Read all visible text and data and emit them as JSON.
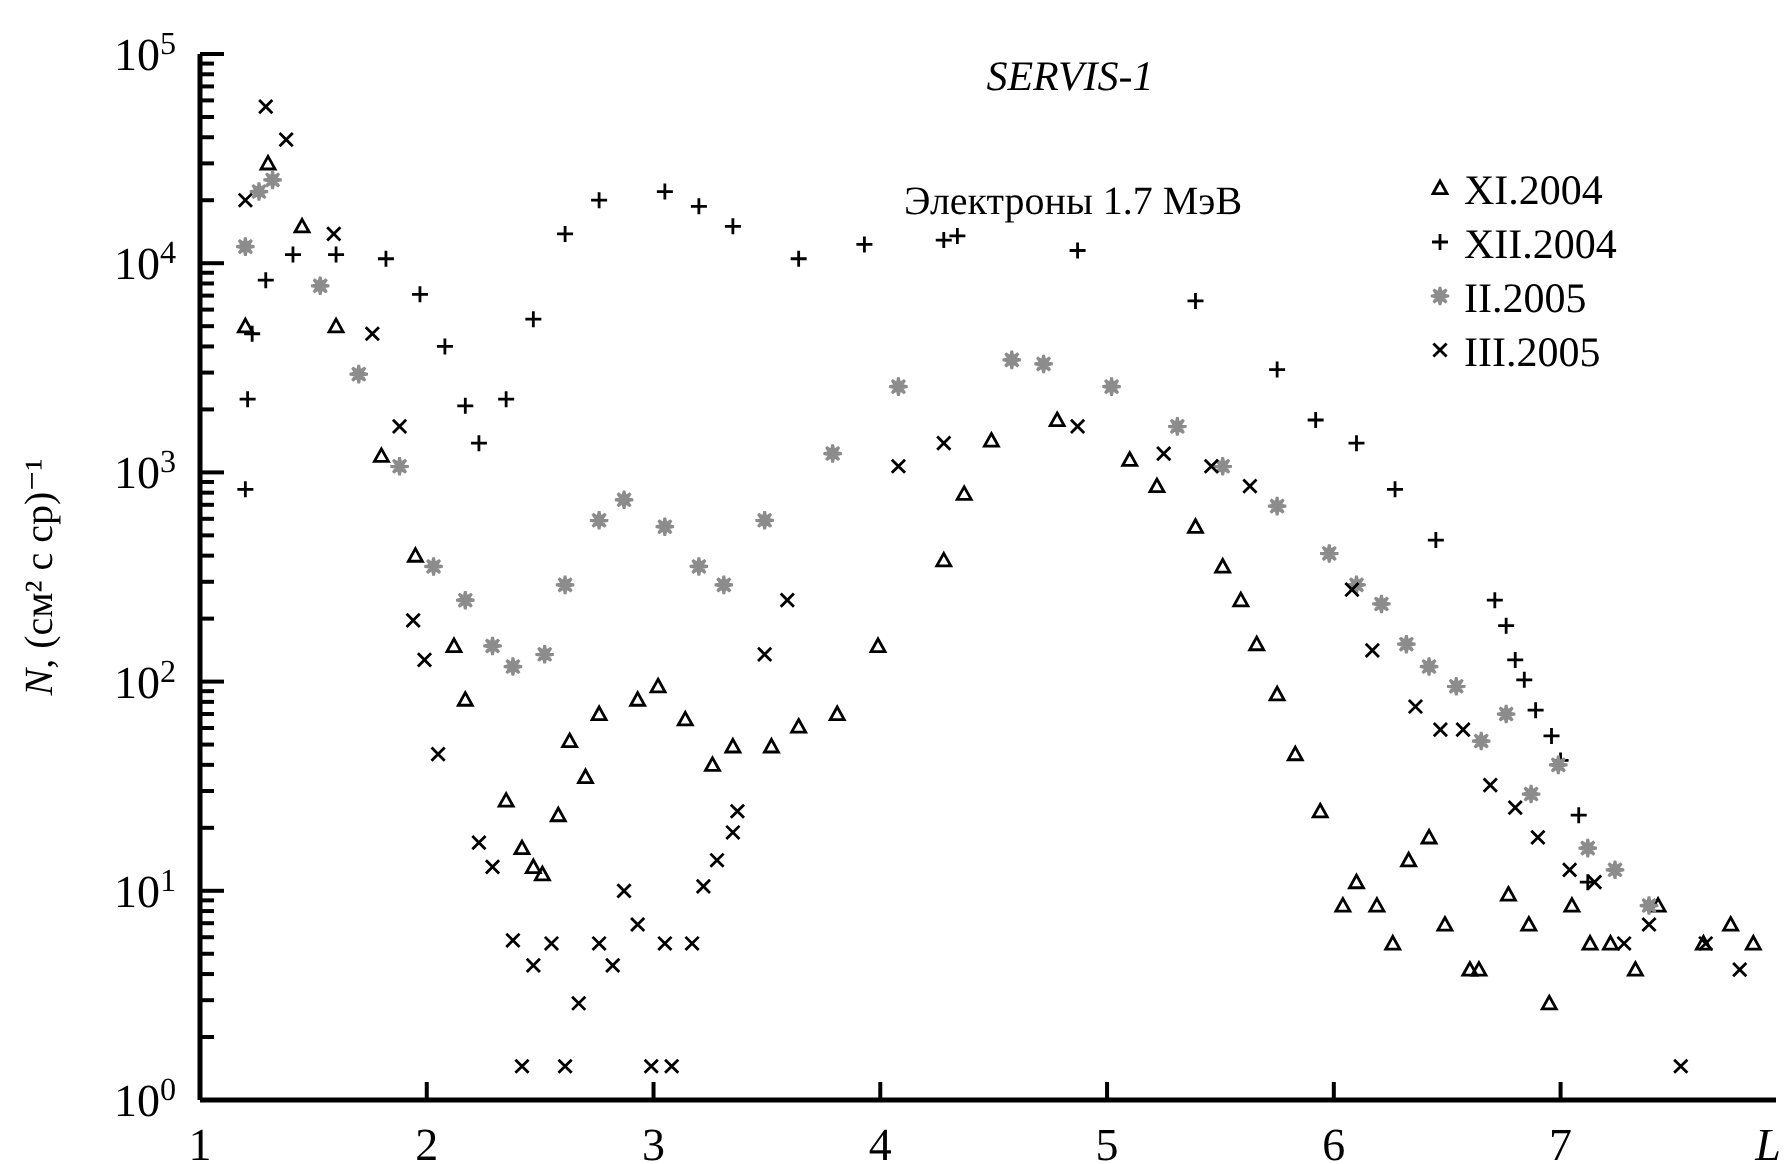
{
  "chart_data": {
    "type": "scatter",
    "title": "SERVIS-1",
    "xlabel": "L",
    "ylabel": "N, (см² с ср)⁻¹",
    "annotations": [
      "Электроны 1.7 МэВ"
    ],
    "log": "y",
    "legend": "top right",
    "xlim": [
      1,
      7.95
    ],
    "xticks": [
      1,
      2,
      3,
      4,
      5,
      6,
      7
    ],
    "ylim": [
      1,
      100000
    ],
    "yticks": [
      {
        "value": 1,
        "label": "10$^{0}$"
      },
      {
        "value": 2,
        "label": null
      },
      {
        "value": 3,
        "label": null
      },
      {
        "value": 4,
        "label": null
      },
      {
        "value": 5,
        "label": null
      },
      {
        "value": 6,
        "label": null
      },
      {
        "value": 7,
        "label": null
      },
      {
        "value": 8,
        "label": null
      },
      {
        "value": 9,
        "label": null
      },
      {
        "value": 10,
        "label": "10$^{1}$"
      },
      {
        "value": 20,
        "label": null
      },
      {
        "value": 30,
        "label": null
      },
      {
        "value": 40,
        "label": null
      },
      {
        "value": 50,
        "label": null
      },
      {
        "value": 60,
        "label": null
      },
      {
        "value": 70,
        "label": null
      },
      {
        "value": 80,
        "label": null
      },
      {
        "value": 90,
        "label": null
      },
      {
        "value": 100,
        "label": "10$^{2}$"
      },
      {
        "value": 200,
        "label": null
      },
      {
        "value": 300,
        "label": null
      },
      {
        "value": 400,
        "label": null
      },
      {
        "value": 500,
        "label": null
      },
      {
        "value": 600,
        "label": null
      },
      {
        "value": 700,
        "label": null
      },
      {
        "value": 800,
        "label": null
      },
      {
        "value": 900,
        "label": null
      },
      {
        "value": 1000,
        "label": "10$^{3}$"
      },
      {
        "value": 2000,
        "label": null
      },
      {
        "value": 3000,
        "label": null
      },
      {
        "value": 4000,
        "label": null
      },
      {
        "value": 5000,
        "label": null
      },
      {
        "value": 6000,
        "label": null
      },
      {
        "value": 7000,
        "label": null
      },
      {
        "value": 8000,
        "label": null
      },
      {
        "value": 9000,
        "label": null
      },
      {
        "value": 10000,
        "label": "10$^{4}$"
      },
      {
        "value": 20000,
        "label": null
      },
      {
        "value": 30000,
        "label": null
      },
      {
        "value": 40000,
        "label": null
      },
      {
        "value": 50000,
        "label": null
      },
      {
        "value": 60000,
        "label": null
      },
      {
        "value": 70000,
        "label": null
      },
      {
        "value": 80000,
        "label": null
      },
      {
        "value": 90000,
        "label": null
      },
      {
        "value": 100000,
        "label": "10$^{5}$"
      }
    ],
    "series": [
      {
        "name": "XI.2004",
        "color": "#000000",
        "marker": "triangle",
        "x": [
          1.2,
          1.3,
          1.45,
          1.6,
          1.8,
          1.95,
          2.12,
          2.17,
          2.35,
          2.42,
          2.47,
          2.51,
          2.58,
          2.63,
          2.7,
          2.76,
          2.93,
          3.02,
          3.14,
          3.26,
          3.35,
          3.52,
          3.64,
          3.81,
          3.99,
          4.28,
          4.37,
          4.49,
          4.78,
          5.1,
          5.22,
          5.39,
          5.51,
          5.59,
          5.66,
          5.75,
          5.83,
          5.94,
          6.04,
          6.1,
          6.19,
          6.26,
          6.33,
          6.42,
          6.49,
          6.6,
          6.64,
          6.77,
          6.86,
          6.95,
          7.05,
          7.13,
          7.22,
          7.33,
          7.43,
          7.63,
          7.75,
          7.85
        ],
        "values": [
          5000,
          30000,
          15000,
          5000,
          1200,
          400,
          148,
          82,
          27,
          16,
          13,
          12,
          23,
          52,
          35,
          70,
          82,
          95,
          66,
          40,
          49,
          49,
          61,
          70,
          148,
          380,
          790,
          1420,
          1780,
          1150,
          860,
          550,
          355,
          245,
          151,
          87,
          45,
          24,
          8.5,
          11,
          8.5,
          5.6,
          14,
          18,
          6.9,
          4.2,
          4.2,
          9.6,
          6.9,
          2.9,
          8.5,
          5.6,
          5.6,
          4.2,
          8.5,
          5.6,
          6.9,
          5.6
        ]
      },
      {
        "name": "XII.2004",
        "color": "#000000",
        "marker": "plus",
        "x": [
          1.2,
          1.21,
          1.23,
          1.29,
          1.41,
          1.6,
          1.82,
          1.97,
          2.08,
          2.17,
          2.23,
          2.35,
          2.47,
          2.61,
          2.76,
          3.05,
          3.2,
          3.35,
          3.64,
          3.93,
          4.28,
          4.34,
          4.87,
          5.39,
          5.75,
          5.92,
          6.1,
          6.27,
          6.45,
          6.71,
          6.76,
          6.8,
          6.84,
          6.89,
          6.96,
          7.0,
          7.08,
          7.12
        ],
        "values": [
          830,
          2240,
          4600,
          8300,
          11000,
          11000,
          10500,
          7100,
          4000,
          2080,
          1380,
          2240,
          5400,
          13800,
          20000,
          22000,
          18700,
          15000,
          10500,
          12300,
          12900,
          13500,
          11500,
          6600,
          3100,
          1780,
          1380,
          830,
          475,
          245,
          185,
          127,
          102,
          73,
          55,
          42,
          23,
          11
        ]
      },
      {
        "name": "II.2005",
        "color": "#8c8c8c",
        "marker": "star",
        "x": [
          1.2,
          1.26,
          1.32,
          1.53,
          1.7,
          1.88,
          2.03,
          2.17,
          2.29,
          2.38,
          2.52,
          2.61,
          2.76,
          2.87,
          3.05,
          3.2,
          3.31,
          3.49,
          3.79,
          4.08,
          4.58,
          4.72,
          5.02,
          5.31,
          5.51,
          5.75,
          5.98,
          6.1,
          6.21,
          6.32,
          6.42,
          6.54,
          6.65,
          6.76,
          6.87,
          6.99,
          7.12,
          7.24,
          7.39
        ],
        "values": [
          12000,
          22000,
          25000,
          7800,
          2950,
          1070,
          355,
          245,
          148,
          118,
          135,
          290,
          590,
          740,
          550,
          355,
          290,
          590,
          1230,
          2570,
          3450,
          3300,
          2570,
          1660,
          1070,
          690,
          410,
          290,
          235,
          151,
          118,
          95,
          52,
          70,
          29,
          40,
          16,
          12.6,
          8.5
        ]
      },
      {
        "name": "III.2005",
        "color": "#000000",
        "marker": "cross",
        "x": [
          1.2,
          1.29,
          1.38,
          1.59,
          1.76,
          1.88,
          1.94,
          1.99,
          2.05,
          2.23,
          2.29,
          2.38,
          2.42,
          2.47,
          2.55,
          2.61,
          2.67,
          2.76,
          2.82,
          2.87,
          2.93,
          2.99,
          3.05,
          3.08,
          3.17,
          3.22,
          3.28,
          3.35,
          3.37,
          3.49,
          3.59,
          4.08,
          4.28,
          4.87,
          5.25,
          5.46,
          5.63,
          6.08,
          6.17,
          6.36,
          6.47,
          6.57,
          6.69,
          6.8,
          6.9,
          7.04,
          7.15,
          7.28,
          7.39,
          7.53,
          7.64,
          7.79
        ],
        "values": [
          20000,
          56000,
          39000,
          13800,
          4600,
          1660,
          196,
          127,
          45,
          17,
          13,
          5.8,
          1.45,
          4.4,
          5.6,
          1.45,
          2.9,
          5.6,
          4.4,
          10,
          6.9,
          1.45,
          5.6,
          1.45,
          5.6,
          10.5,
          14,
          19,
          24,
          135,
          245,
          1070,
          1380,
          1660,
          1230,
          1070,
          860,
          275,
          141,
          76,
          59,
          59,
          32,
          25,
          18,
          12.6,
          11,
          5.6,
          6.9,
          1.45,
          5.6,
          4.2
        ]
      }
    ]
  }
}
